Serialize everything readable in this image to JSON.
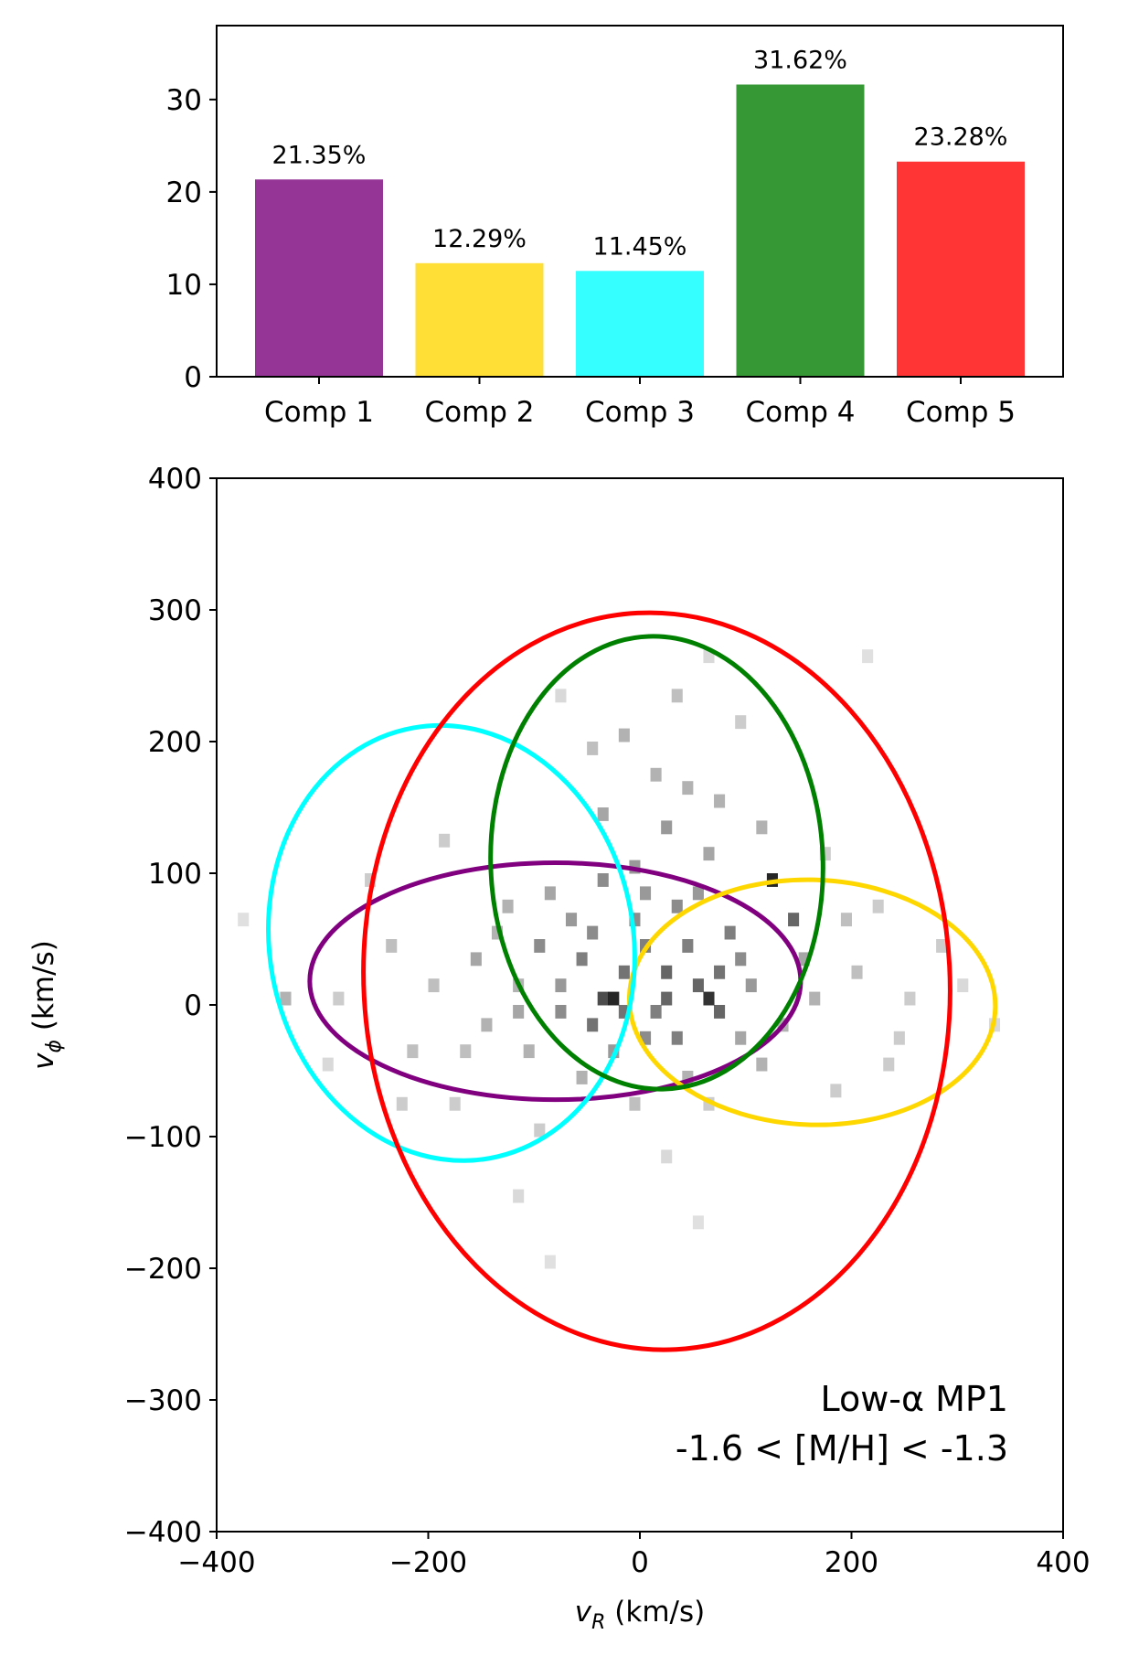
{
  "chart_data": [
    {
      "type": "bar",
      "categories": [
        "Comp 1",
        "Comp 2",
        "Comp 3",
        "Comp 4",
        "Comp 5"
      ],
      "values": [
        21.35,
        12.29,
        11.45,
        31.62,
        23.28
      ],
      "data_labels": [
        "21.35%",
        "12.29%",
        "11.45%",
        "31.62%",
        "23.28%"
      ],
      "colors": [
        "#953595",
        "#FFDE35",
        "#35FFFF",
        "#359835",
        "#FF3535"
      ],
      "ylim": [
        0,
        38
      ],
      "yticks": [
        0,
        10,
        20,
        30
      ],
      "ytick_labels": [
        "0",
        "10",
        "20",
        "30"
      ]
    },
    {
      "type": "scatter",
      "subtype": "2d-histogram-with-ellipses",
      "xlabel": {
        "main": "v",
        "sub": "R",
        "unit": " (km/s)"
      },
      "ylabel": {
        "main": "v",
        "sub": "ϕ",
        "unit": " (km/s)"
      },
      "xlim": [
        -400,
        400
      ],
      "ylim": [
        -400,
        400
      ],
      "xticks": [
        -400,
        -200,
        0,
        200,
        400
      ],
      "xtick_labels": [
        "−400",
        "−200",
        "0",
        "200",
        "400"
      ],
      "yticks": [
        -400,
        -300,
        -200,
        -100,
        0,
        100,
        200,
        300,
        400
      ],
      "ytick_labels": [
        "−400",
        "−300",
        "−200",
        "−100",
        "0",
        "100",
        "200",
        "300",
        "400"
      ],
      "annotation": [
        "Low-α MP1",
        "-1.6 < [M/H] < -1.3"
      ],
      "histogram": {
        "bin_size": 10,
        "color": "#000000",
        "cells": [
          [
            -30,
            0,
            0.85
          ],
          [
            -40,
            0,
            0.7
          ],
          [
            60,
            0,
            0.8
          ],
          [
            70,
            -10,
            0.6
          ],
          [
            50,
            10,
            0.6
          ],
          [
            -20,
            20,
            0.55
          ],
          [
            -60,
            30,
            0.5
          ],
          [
            0,
            40,
            0.5
          ],
          [
            -100,
            40,
            0.45
          ],
          [
            20,
            20,
            0.6
          ],
          [
            40,
            40,
            0.5
          ],
          [
            -50,
            -20,
            0.55
          ],
          [
            10,
            -10,
            0.5
          ],
          [
            -10,
            60,
            0.45
          ],
          [
            30,
            70,
            0.45
          ],
          [
            -80,
            10,
            0.4
          ],
          [
            100,
            10,
            0.4
          ],
          [
            -30,
            -40,
            0.4
          ],
          [
            120,
            90,
            0.85
          ],
          [
            140,
            60,
            0.6
          ],
          [
            20,
            130,
            0.4
          ],
          [
            -70,
            60,
            0.4
          ],
          [
            80,
            50,
            0.5
          ],
          [
            -10,
            100,
            0.4
          ],
          [
            -160,
            30,
            0.35
          ],
          [
            -120,
            10,
            0.3
          ],
          [
            150,
            30,
            0.35
          ],
          [
            -90,
            80,
            0.35
          ],
          [
            60,
            110,
            0.35
          ],
          [
            0,
            -30,
            0.45
          ],
          [
            -40,
            140,
            0.35
          ],
          [
            10,
            170,
            0.3
          ],
          [
            40,
            160,
            0.3
          ],
          [
            -20,
            200,
            0.3
          ],
          [
            30,
            230,
            0.25
          ],
          [
            -50,
            190,
            0.25
          ],
          [
            70,
            150,
            0.3
          ],
          [
            110,
            130,
            0.3
          ],
          [
            -130,
            70,
            0.3
          ],
          [
            -200,
            10,
            0.25
          ],
          [
            -240,
            40,
            0.25
          ],
          [
            -290,
            0,
            0.2
          ],
          [
            -340,
            0,
            0.3
          ],
          [
            -220,
            -40,
            0.25
          ],
          [
            -180,
            -80,
            0.2
          ],
          [
            200,
            20,
            0.25
          ],
          [
            250,
            0,
            0.2
          ],
          [
            230,
            -50,
            0.2
          ],
          [
            180,
            -70,
            0.2
          ],
          [
            280,
            40,
            0.2
          ],
          [
            300,
            10,
            0.15
          ],
          [
            -150,
            -20,
            0.3
          ],
          [
            -110,
            -40,
            0.3
          ],
          [
            90,
            -30,
            0.35
          ],
          [
            130,
            -20,
            0.3
          ],
          [
            -60,
            -60,
            0.3
          ],
          [
            40,
            -60,
            0.3
          ],
          [
            -10,
            -80,
            0.25
          ],
          [
            60,
            -80,
            0.2
          ],
          [
            -100,
            -100,
            0.2
          ],
          [
            20,
            -120,
            0.15
          ],
          [
            -120,
            -150,
            0.15
          ],
          [
            -90,
            -200,
            0.12
          ],
          [
            50,
            -170,
            0.12
          ],
          [
            90,
            210,
            0.2
          ],
          [
            -80,
            230,
            0.15
          ],
          [
            60,
            260,
            0.15
          ],
          [
            170,
            110,
            0.2
          ],
          [
            190,
            60,
            0.25
          ],
          [
            -190,
            120,
            0.2
          ],
          [
            -260,
            90,
            0.2
          ],
          [
            -300,
            -50,
            0.15
          ],
          [
            330,
            -20,
            0.15
          ],
          [
            -380,
            60,
            0.12
          ],
          [
            210,
            260,
            0.12
          ],
          [
            -40,
            90,
            0.45
          ],
          [
            0,
            80,
            0.4
          ],
          [
            50,
            80,
            0.4
          ],
          [
            -80,
            -10,
            0.45
          ],
          [
            -120,
            -10,
            0.35
          ],
          [
            90,
            30,
            0.45
          ],
          [
            110,
            -50,
            0.3
          ],
          [
            20,
            0,
            0.6
          ],
          [
            -20,
            -10,
            0.55
          ],
          [
            30,
            -30,
            0.5
          ],
          [
            70,
            20,
            0.55
          ],
          [
            -50,
            50,
            0.45
          ],
          [
            -140,
            50,
            0.3
          ],
          [
            -170,
            -40,
            0.25
          ],
          [
            160,
            0,
            0.3
          ],
          [
            220,
            70,
            0.2
          ],
          [
            -230,
            -80,
            0.2
          ],
          [
            240,
            -30,
            0.2
          ]
        ]
      },
      "ellipses": [
        {
          "name": "Comp 1",
          "color": "#800080",
          "cx": -80,
          "cy": 18,
          "rx": 232,
          "ry": 90,
          "angle": 0
        },
        {
          "name": "Comp 2",
          "color": "#FFD700",
          "cx": 163,
          "cy": 2,
          "rx": 173,
          "ry": 93,
          "angle": 2
        },
        {
          "name": "Comp 3",
          "color": "#00FFFF",
          "cx": -178,
          "cy": 47,
          "rx": 172,
          "ry": 166,
          "angle": -10
        },
        {
          "name": "Comp 4",
          "color": "#008000",
          "cx": 16,
          "cy": 108,
          "rx": 157,
          "ry": 172,
          "angle": -2
        },
        {
          "name": "Comp 5",
          "color": "#FF0000",
          "cx": 16,
          "cy": 18,
          "rx": 277,
          "ry": 280,
          "angle": -3
        }
      ]
    }
  ]
}
